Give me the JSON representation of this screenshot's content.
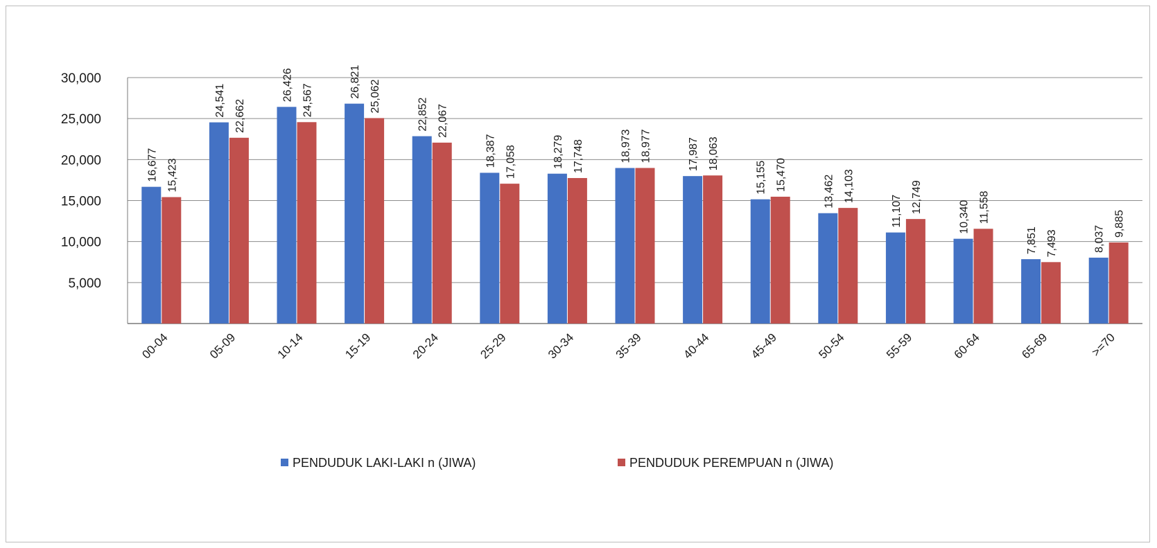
{
  "colors": {
    "male": "#4472c4",
    "female": "#c0504d",
    "grid": "#8c8c8c"
  },
  "chart_data": {
    "type": "bar",
    "title": "",
    "xlabel": "",
    "ylabel": "",
    "ylim": [
      0,
      30000
    ],
    "yticks": [
      5000,
      10000,
      15000,
      20000,
      25000,
      30000
    ],
    "ytick_labels": [
      "5,000",
      "10,000",
      "15,000",
      "20,000",
      "25,000",
      "30,000"
    ],
    "grid": true,
    "legend_position": "bottom",
    "categories": [
      "00-04",
      "05-09",
      "10-14",
      "15-19",
      "20-24",
      "25-29",
      "30-34",
      "35-39",
      "40-44",
      "45-49",
      "50-54",
      "55-59",
      "60-64",
      "65-69",
      ">=70"
    ],
    "series": [
      {
        "name": "PENDUDUK LAKI-LAKI n (JIWA)",
        "values": [
          16677,
          24541,
          26426,
          26821,
          22852,
          18387,
          18279,
          18973,
          17987,
          15155,
          13462,
          11107,
          10340,
          7851,
          8037
        ],
        "labels": [
          "16,677",
          "24,541",
          "26,426",
          "26,821",
          "22,852",
          "18,387",
          "18,279",
          "18,973",
          "17,987",
          "15,155",
          "13,462",
          "11,107",
          "10,340",
          "7,851",
          "8,037"
        ]
      },
      {
        "name": "PENDUDUK PEREMPUAN n (JIWA)",
        "values": [
          15423,
          22662,
          24567,
          25062,
          22067,
          17058,
          17748,
          18977,
          18063,
          15470,
          14103,
          12749,
          11558,
          7493,
          9885
        ],
        "labels": [
          "15,423",
          "22,662",
          "24,567",
          "25,062",
          "22,067",
          "17,058",
          "17,748",
          "18,977",
          "18,063",
          "15,470",
          "14,103",
          "12,749",
          "11,558",
          "7,493",
          "9,885"
        ]
      }
    ]
  }
}
